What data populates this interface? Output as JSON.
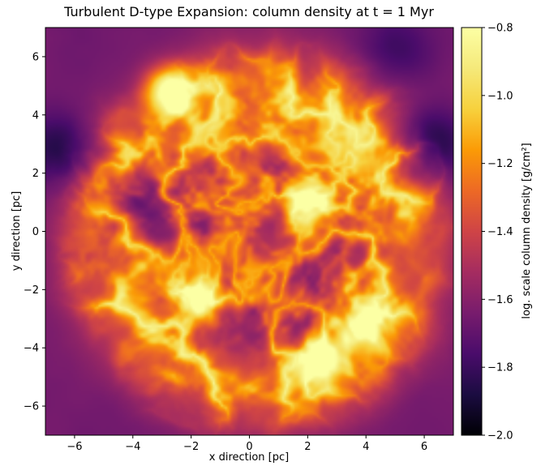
{
  "chart_data": {
    "type": "heatmap",
    "title": "Turbulent D-type Expansion: column density at t = 1 Myr",
    "xlabel": "x direction [pc]",
    "ylabel": "y direction [pc]",
    "xlim": [
      -7,
      7
    ],
    "ylim": [
      -7,
      7
    ],
    "x_ticks": [
      -6,
      -4,
      -2,
      0,
      2,
      4,
      6
    ],
    "y_ticks": [
      -6,
      -4,
      -2,
      0,
      2,
      4,
      6
    ],
    "x_tick_labels": [
      "−6",
      "−4",
      "−2",
      "0",
      "2",
      "4",
      "6"
    ],
    "y_tick_labels": [
      "−6",
      "−4",
      "−2",
      "0",
      "2",
      "4",
      "6"
    ],
    "colormap": "inferno",
    "colorbar": {
      "label": "log. scale column density [g/cm²]",
      "min": -2.0,
      "max": -0.8,
      "ticks": [
        -2.0,
        -1.8,
        -1.6,
        -1.4,
        -1.2,
        -1.0,
        -0.8
      ],
      "tick_labels": [
        "−2.0",
        "−1.8",
        "−1.6",
        "−1.4",
        "−1.2",
        "−1.0",
        "−0.8"
      ]
    },
    "features": {
      "shell_center": [
        0.3,
        -0.3
      ],
      "shell_radius_pc": 5.2,
      "bright_knots": [
        {
          "x": -2.8,
          "y": 4.9,
          "value": -0.85
        },
        {
          "x": 2.0,
          "y": 1.0,
          "value": -0.9
        },
        {
          "x": -1.8,
          "y": -2.4,
          "value": -0.95
        },
        {
          "x": 2.5,
          "y": -4.3,
          "value": -0.95
        },
        {
          "x": 3.8,
          "y": -3.2,
          "value": -1.0
        }
      ],
      "dark_regions": [
        {
          "x": -4.2,
          "y": 1.2,
          "value": -1.9
        },
        {
          "x": 6.2,
          "y": 3.0,
          "value": -1.95
        },
        {
          "x": -6.5,
          "y": 2.8,
          "value": -1.9
        },
        {
          "x": 5.0,
          "y": 6.3,
          "value": -1.8
        },
        {
          "x": 1.8,
          "y": -3.2,
          "value": -1.75
        }
      ],
      "background_value": -1.65
    }
  }
}
